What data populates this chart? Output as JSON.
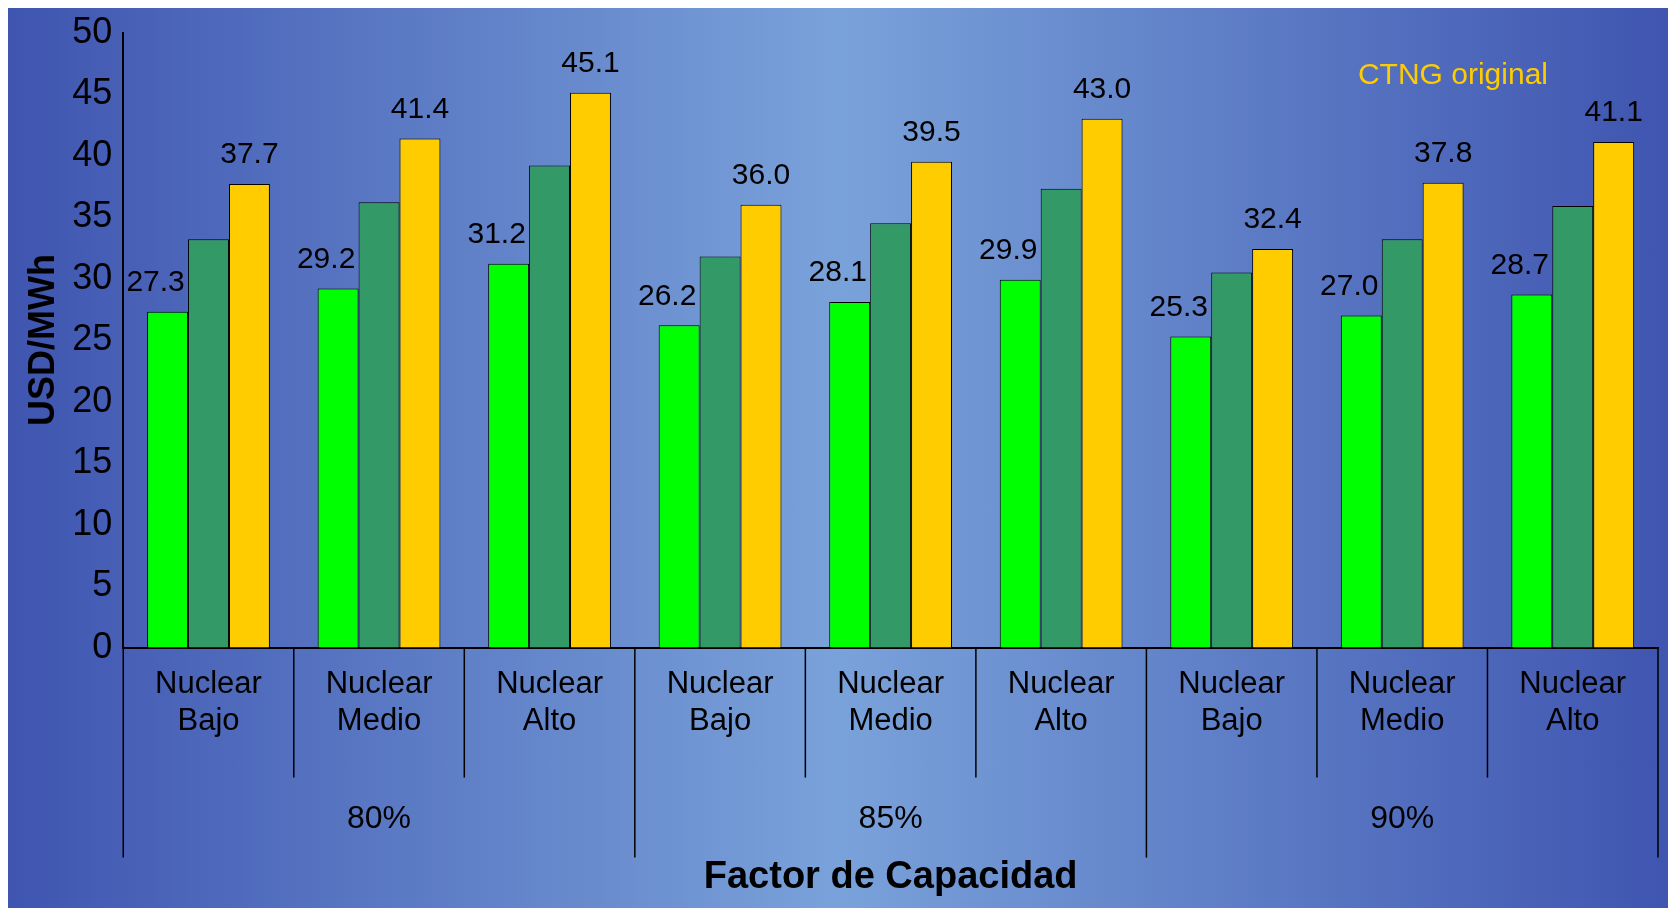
{
  "chart_data": {
    "type": "bar",
    "xlabel": "Factor de Capacidad",
    "ylabel": "USD/MWh",
    "categories": [
      "Nuclear Bajo",
      "Nuclear Medio",
      "Nuclear Alto",
      "Nuclear Bajo",
      "Nuclear Medio",
      "Nuclear Alto",
      "Nuclear Bajo",
      "Nuclear Medio",
      "Nuclear Alto"
    ],
    "series": [
      {
        "color": "#00ff00",
        "values": [
          27.3,
          29.2,
          31.2,
          26.2,
          28.1,
          29.9,
          25.3,
          27.0,
          28.7
        ],
        "value_labels": [
          "27.3",
          "29.2",
          "31.2",
          "26.2",
          "28.1",
          "29.9",
          "25.3",
          "27.0",
          "28.7"
        ]
      },
      {
        "color": "#339966",
        "values": [
          33.2,
          36.2,
          39.2,
          31.8,
          34.5,
          37.3,
          30.5,
          33.2,
          35.9
        ]
      },
      {
        "name": "CTNG original",
        "color": "#ffcc00",
        "values": [
          37.7,
          41.4,
          45.1,
          36.0,
          39.5,
          43.0,
          32.4,
          37.8,
          41.1
        ],
        "value_labels": [
          "37.7",
          "41.4",
          "45.1",
          "36.0",
          "39.5",
          "43.0",
          "32.4",
          "37.8",
          "41.1"
        ]
      }
    ],
    "annotations": [
      "80%",
      "85%",
      "90%"
    ],
    "ylim": [
      0,
      50
    ],
    "yticks": [
      0,
      5,
      10,
      15,
      20,
      25,
      30,
      35,
      40,
      45,
      50
    ],
    "grid": false,
    "legend": "top right"
  }
}
